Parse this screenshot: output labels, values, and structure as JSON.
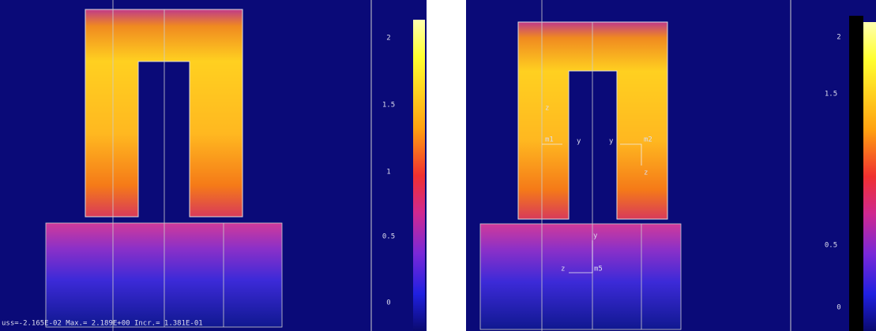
{
  "left_panel": {
    "scale_labels": [
      "2",
      "1.5",
      "1",
      "0.5",
      "0"
    ],
    "status": "uss=-2.165E-02 Max.= 2.189E+00 Incr.= 1.381E-01"
  },
  "right_panel": {
    "scale_labels": [
      "2",
      "1.5",
      "0.5",
      "0"
    ],
    "annotations": [
      "z",
      "m1",
      "y",
      "y",
      "m2",
      "z",
      "y",
      "z",
      "m5"
    ]
  }
}
